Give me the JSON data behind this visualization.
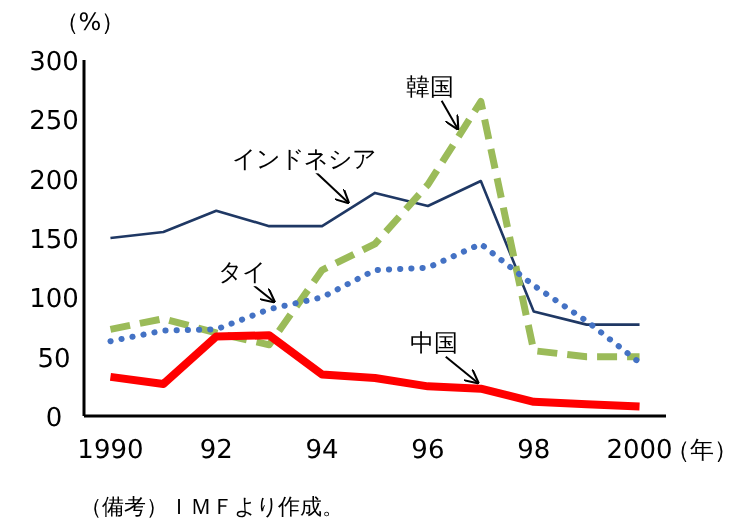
{
  "chart_data": {
    "type": "line",
    "ylabel": "（%）",
    "xlabel": "（年）",
    "annotations": [
      "（備考）ＩＭＦより作成。"
    ],
    "x": [
      1990,
      1991,
      1992,
      1993,
      1994,
      1995,
      1996,
      1997,
      1998,
      1999,
      2000
    ],
    "xlim": [
      1989.5,
      2000.5
    ],
    "xticks": [
      1990,
      {
        "value": 1992,
        "label": "92"
      },
      {
        "value": 1994,
        "label": "94"
      },
      {
        "value": 1996,
        "label": "96"
      },
      {
        "value": 1998,
        "label": "98"
      },
      2000
    ],
    "ylim": [
      0,
      300
    ],
    "yticks": [
      0,
      50,
      100,
      150,
      200,
      250,
      300
    ],
    "grid": false,
    "marker": "none",
    "series": [
      {
        "name": "インドネシア",
        "color": "#1f3864",
        "line_style": "solid",
        "values": [
          150,
          155,
          173,
          160,
          160,
          188,
          177,
          198,
          88,
          77,
          77
        ]
      },
      {
        "name": "韓国",
        "color": "#9bbb59",
        "line_style": "dashed",
        "values": [
          73,
          82,
          70,
          60,
          123,
          145,
          195,
          265,
          55,
          50,
          50
        ]
      },
      {
        "name": "タイ",
        "color": "#4472c4",
        "line_style": "dotted",
        "values": [
          63,
          72,
          73,
          90,
          100,
          123,
          125,
          145,
          110,
          80,
          45
        ]
      },
      {
        "name": "中国",
        "color": "#ff0000",
        "line_style": "solid",
        "values": [
          33,
          27,
          67,
          68,
          35,
          32,
          25,
          23,
          12,
          10,
          8
        ]
      }
    ]
  }
}
